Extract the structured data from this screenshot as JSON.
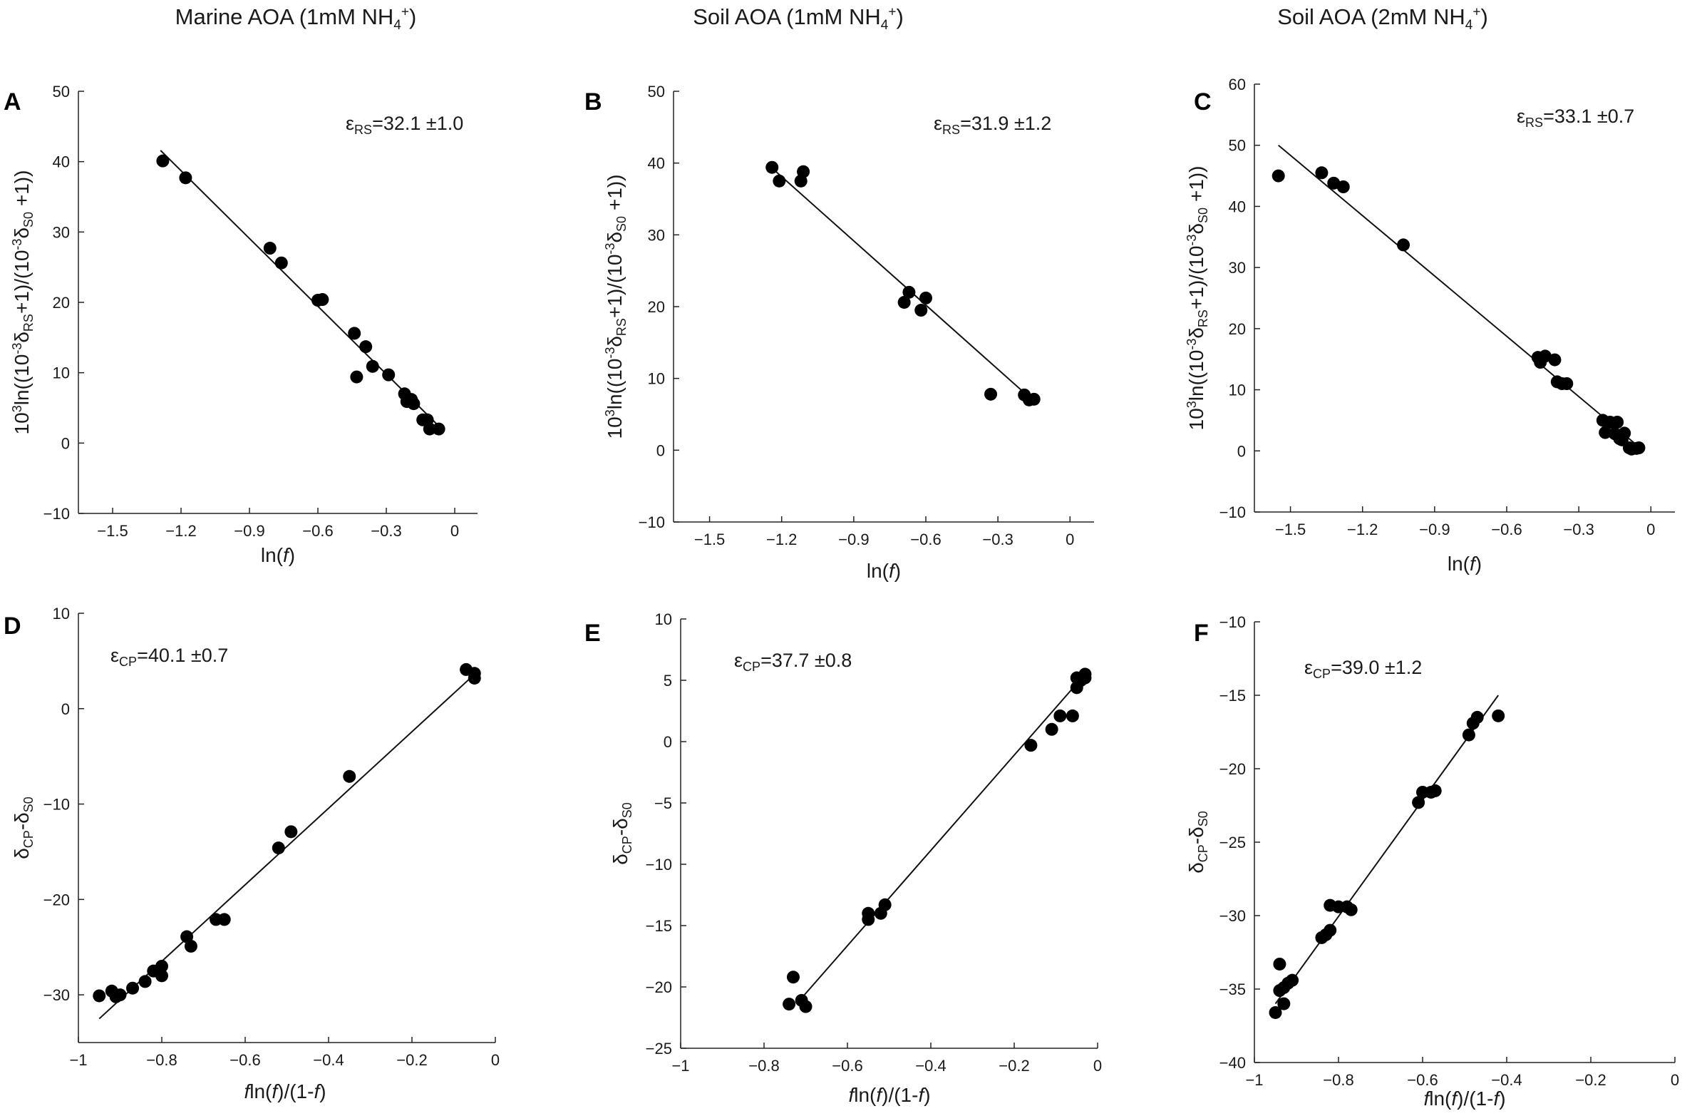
{
  "column_titles": [
    {
      "base": "Marine AOA (1mM NH",
      "sub": "4",
      "sup": "+",
      "close": ")"
    },
    {
      "base": "Soil AOA (1mM NH",
      "sub": "4",
      "sup": "+",
      "close": ")"
    },
    {
      "base": "Soil AOA (2mM NH",
      "sub": "4",
      "sup": "+",
      "close": ")"
    }
  ],
  "chart_data": [
    {
      "panel": "A",
      "type": "scatter",
      "xlabel": "ln(f)",
      "ylabel": "10^3 ln((10^-3 δRS+1)/(10^-3 δS0 +1))",
      "xlim": [
        -1.65,
        0.1
      ],
      "ylim": [
        -10,
        50
      ],
      "xticks": [
        -1.5,
        -1.2,
        -0.9,
        -0.6,
        -0.3,
        0
      ],
      "yticks": [
        -10,
        0,
        10,
        20,
        30,
        40,
        50
      ],
      "annotation": {
        "symbol": "ε",
        "sub": "RS",
        "value": "=32.1 ±1.0"
      },
      "fit_line": {
        "x": [
          -1.29,
          -0.06
        ],
        "y": [
          41.6,
          2.1
        ]
      },
      "x": [
        -1.28,
        -1.18,
        -0.81,
        -0.76,
        -0.6,
        -0.58,
        -0.44,
        -0.43,
        -0.39,
        -0.36,
        -0.29,
        -0.22,
        -0.21,
        -0.19,
        -0.18,
        -0.14,
        -0.12,
        -0.11,
        -0.07
      ],
      "y": [
        40.1,
        37.7,
        27.7,
        25.6,
        20.3,
        20.4,
        15.6,
        9.4,
        13.7,
        10.9,
        9.7,
        7.0,
        5.9,
        6.2,
        5.6,
        3.3,
        3.3,
        2.0,
        2.0
      ]
    },
    {
      "panel": "B",
      "type": "scatter",
      "xlabel": "ln(f)",
      "ylabel": "10^3 ln((10^-3 δRS+1)/(10^-3 δS0 +1))",
      "xlim": [
        -1.65,
        0.1
      ],
      "ylim": [
        -10,
        50
      ],
      "xticks": [
        -1.5,
        -1.2,
        -0.9,
        -0.6,
        -0.3,
        0
      ],
      "yticks": [
        -10,
        0,
        10,
        20,
        30,
        40,
        50
      ],
      "annotation": {
        "symbol": "ε",
        "sub": "RS",
        "value": "=31.9 ±1.2"
      },
      "fit_line": {
        "x": [
          -1.23,
          -0.15
        ],
        "y": [
          39.0,
          6.8
        ]
      },
      "x": [
        -1.24,
        -1.21,
        -1.12,
        -1.11,
        -0.69,
        -0.67,
        -0.62,
        -0.6,
        -0.33,
        -0.19,
        -0.17,
        -0.15
      ],
      "y": [
        39.4,
        37.5,
        37.5,
        38.8,
        20.6,
        22.0,
        19.5,
        21.2,
        7.8,
        7.7,
        7.0,
        7.1
      ]
    },
    {
      "panel": "C",
      "type": "scatter",
      "xlabel": "ln(f)",
      "ylabel": "10^3 ln((10^-3 δRS+1)/(10^-3 δS0 +1))",
      "xlim": [
        -1.65,
        0.1
      ],
      "ylim": [
        -10,
        60
      ],
      "xticks": [
        -1.5,
        -1.2,
        -0.9,
        -0.6,
        -0.3,
        0
      ],
      "yticks": [
        -10,
        0,
        10,
        20,
        30,
        40,
        50,
        60
      ],
      "annotation": {
        "symbol": "ε",
        "sub": "RS",
        "value": "=33.1 ±0.7"
      },
      "fit_line": {
        "x": [
          -1.55,
          -0.03
        ],
        "y": [
          50.0,
          0.0
        ]
      },
      "x": [
        -1.55,
        -1.37,
        -1.32,
        -1.28,
        -1.03,
        -0.47,
        -0.46,
        -0.44,
        -0.4,
        -0.39,
        -0.37,
        -0.35,
        -0.2,
        -0.19,
        -0.17,
        -0.15,
        -0.14,
        -0.13,
        -0.12,
        -0.11,
        -0.09,
        -0.08,
        -0.06,
        -0.05
      ],
      "y": [
        45.0,
        45.5,
        43.8,
        43.2,
        33.7,
        15.3,
        14.5,
        15.5,
        14.9,
        11.3,
        11.0,
        11.0,
        5.0,
        3.0,
        4.7,
        2.8,
        4.7,
        2.0,
        1.8,
        2.9,
        0.5,
        0.3,
        0.4,
        0.5
      ]
    },
    {
      "panel": "D",
      "type": "scatter",
      "xlabel": "fln(f)/(1-f)",
      "ylabel": "δCP-δS0",
      "xlim": [
        -1.0,
        0.0
      ],
      "ylim": [
        -35,
        10
      ],
      "xticks": [
        -1,
        -0.8,
        -0.6,
        -0.4,
        -0.2,
        0
      ],
      "yticks": [
        -30,
        -20,
        -10,
        0,
        10
      ],
      "annotation": {
        "symbol": "ε",
        "sub": "CP",
        "value": "=40.1 ±0.7"
      },
      "fit_line": {
        "x": [
          -0.95,
          -0.05
        ],
        "y": [
          -32.5,
          3.6
        ]
      },
      "x": [
        -0.95,
        -0.92,
        -0.91,
        -0.9,
        -0.87,
        -0.84,
        -0.82,
        -0.8,
        -0.8,
        -0.74,
        -0.73,
        -0.67,
        -0.65,
        -0.52,
        -0.49,
        -0.35,
        -0.07,
        -0.05,
        -0.05
      ],
      "y": [
        -30.1,
        -29.6,
        -30.2,
        -30.0,
        -29.3,
        -28.6,
        -27.5,
        -28.0,
        -27.0,
        -23.9,
        -24.9,
        -22.1,
        -22.1,
        -14.6,
        -12.9,
        -7.1,
        4.1,
        3.7,
        3.2
      ]
    },
    {
      "panel": "E",
      "type": "scatter",
      "xlabel": "fln(f)/(1-f)",
      "ylabel": "δCP-δS0",
      "xlim": [
        -1.0,
        0.0
      ],
      "ylim": [
        -25,
        10
      ],
      "xticks": [
        -1,
        -0.8,
        -0.6,
        -0.4,
        -0.2,
        0
      ],
      "yticks": [
        -25,
        -20,
        -15,
        -10,
        -5,
        0,
        5,
        10
      ],
      "annotation": {
        "symbol": "ε",
        "sub": "CP",
        "value": "=37.7 ±0.8"
      },
      "fit_line": {
        "x": [
          -0.72,
          -0.03
        ],
        "y": [
          -21.3,
          5.5
        ]
      },
      "x": [
        -0.74,
        -0.73,
        -0.71,
        -0.7,
        -0.55,
        -0.55,
        -0.52,
        -0.51,
        -0.16,
        -0.11,
        -0.09,
        -0.06,
        -0.05,
        -0.05,
        -0.04,
        -0.03,
        -0.03
      ],
      "y": [
        -21.4,
        -19.2,
        -21.1,
        -21.6,
        -14.5,
        -14.0,
        -14.0,
        -13.3,
        -0.3,
        1.0,
        2.1,
        2.1,
        4.4,
        5.2,
        5.0,
        5.5,
        5.2
      ]
    },
    {
      "panel": "F",
      "type": "scatter",
      "xlabel": "fln(f)/(1-f)",
      "ylabel": "δCP-δS0",
      "xlim": [
        -1.0,
        0.0
      ],
      "ylim": [
        -40,
        -10
      ],
      "xticks": [
        -1,
        -0.8,
        -0.6,
        -0.4,
        -0.2,
        0
      ],
      "yticks": [
        -40,
        -35,
        -30,
        -25,
        -20,
        -15,
        -10
      ],
      "annotation": {
        "symbol": "ε",
        "sub": "CP",
        "value": "=39.0 ±1.2"
      },
      "fit_line": {
        "x": [
          -0.95,
          -0.42
        ],
        "y": [
          -36.0,
          -15.0
        ]
      },
      "x": [
        -0.95,
        -0.94,
        -0.94,
        -0.93,
        -0.93,
        -0.92,
        -0.91,
        -0.84,
        -0.83,
        -0.82,
        -0.82,
        -0.8,
        -0.78,
        -0.77,
        -0.61,
        -0.6,
        -0.58,
        -0.57,
        -0.49,
        -0.48,
        -0.47,
        -0.42
      ],
      "y": [
        -36.6,
        -35.1,
        -33.3,
        -36.0,
        -34.9,
        -34.6,
        -34.4,
        -31.5,
        -31.3,
        -31.0,
        -29.3,
        -29.4,
        -29.4,
        -29.6,
        -22.3,
        -21.6,
        -21.6,
        -21.5,
        -17.7,
        -16.9,
        -16.5,
        -16.4
      ]
    }
  ]
}
